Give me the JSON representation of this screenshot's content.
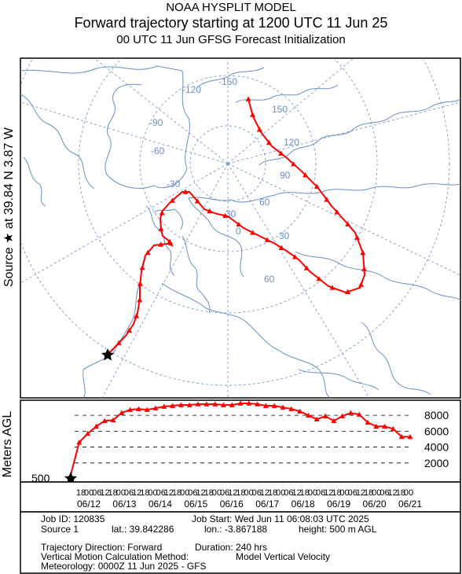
{
  "header": {
    "title": "NOAA HYSPLIT MODEL",
    "subtitle": "Forward trajectory starting at 1200 UTC 11 Jun 25",
    "init_line": "00 UTC 11 Jun    GFSG  Forecast Initialization"
  },
  "side_label": "Source ★ at  39.84 N    3.87 W",
  "map": {
    "meridian_labels": [
      "-150",
      "150",
      "-120",
      "120",
      "-90",
      "90",
      "-60",
      "60",
      "-30",
      "30",
      "0",
      "30",
      "60"
    ],
    "trajectory_color": "#ff0000",
    "coast_color": "#6a8fc4",
    "graticule_color": "#6a8fc4"
  },
  "chart_data": {
    "type": "line",
    "title": "",
    "ylabel": "Meters AGL",
    "yticks": [
      "2000",
      "4000",
      "6000",
      "8000"
    ],
    "ylim": [
      0,
      9500
    ],
    "start_label": "500",
    "x_tick_labels": [
      "18",
      "00",
      "06",
      "12",
      "18",
      "00",
      "06",
      "12",
      "18",
      "00",
      "06",
      "12",
      "18",
      "00",
      "06",
      "12",
      "18",
      "00",
      "06",
      "12",
      "18",
      "00",
      "06",
      "12",
      "18",
      "00",
      "06",
      "12",
      "18",
      "00",
      "06",
      "12",
      "18",
      "00",
      "06",
      "12",
      "18",
      "00",
      "06",
      "12",
      "18",
      "00"
    ],
    "date_labels": [
      "06/12",
      "06/13",
      "06/14",
      "06/15",
      "06/16",
      "06/17",
      "06/18",
      "06/19",
      "06/20",
      "06/21"
    ],
    "series": [
      {
        "values": [
          500,
          4600,
          5700,
          6600,
          7300,
          7400,
          8300,
          8700,
          8800,
          8700,
          8900,
          9100,
          9200,
          9300,
          9300,
          9400,
          9400,
          9400,
          9300,
          9300,
          9500,
          9500,
          9400,
          9200,
          9200,
          9000,
          8800,
          8500,
          8000,
          7500,
          7900,
          7300,
          7900,
          8300,
          8100,
          7100,
          6600,
          6600,
          6300,
          5300,
          5300
        ]
      }
    ]
  },
  "info": {
    "job_id": "Job ID: 120835",
    "job_start": "Job Start: Wed Jun 11 06:08:03 UTC 2025",
    "source": "Source 1",
    "lat": "lat.: 39.842286",
    "lon": "lon.: -3.867188",
    "height": "height: 500 m AGL",
    "direction": "Trajectory Direction: Forward",
    "duration": "Duration: 240 hrs",
    "vmethod": "Vertical Motion Calculation Method:",
    "vmethod_val": "Model Vertical Velocity",
    "meteo": "Meteorology: 0000Z 11 Jun 2025 - GFS"
  }
}
